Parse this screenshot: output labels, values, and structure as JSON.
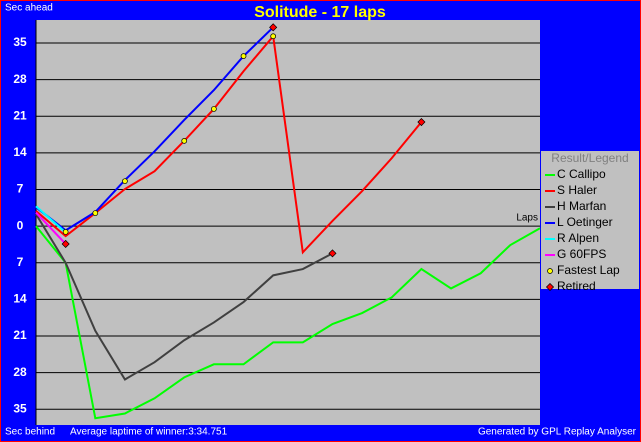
{
  "chart_data": {
    "type": "line",
    "title": "Solitude - 17 laps",
    "y_label_top": "Sec ahead",
    "y_label_bottom": "Sec behind",
    "x_label": "Laps",
    "footer_left": "Average laptime of winner:3:34.751",
    "footer_right": "Generated by GPL Replay Analyser",
    "legend_title": "Result/Legend",
    "x": [
      0,
      1,
      2,
      3,
      4,
      5,
      6,
      7,
      8,
      9,
      10,
      11,
      12,
      13,
      14,
      15,
      16,
      17
    ],
    "xlim": [
      0,
      17
    ],
    "ylim": [
      -38,
      39.4
    ],
    "yticks": [
      35,
      28,
      21,
      14,
      7,
      0,
      {
        "value": -7,
        "label": "7"
      },
      {
        "value": -14,
        "label": "14"
      },
      {
        "value": -21,
        "label": "21"
      },
      {
        "value": -28,
        "label": "28"
      },
      {
        "value": -35,
        "label": "35"
      }
    ],
    "grid": true,
    "series": [
      {
        "name": "C Callipo",
        "color": "#00ff00",
        "values": [
          0,
          -7,
          -36.7,
          -35.8,
          -32.9,
          -28.9,
          -26.4,
          -26.4,
          -22.2,
          -22.2,
          -18.7,
          -16.6,
          -13.6,
          -8.2,
          -11.9,
          -9,
          -3.6,
          -0.4
        ]
      },
      {
        "name": "S Haler",
        "color": "#ff0000",
        "values": [
          2.9,
          -1.9,
          2.5,
          7.1,
          10.5,
          16.3,
          22.4,
          29.6,
          36.3,
          -5,
          1,
          6.7,
          13,
          19.9,
          null,
          null,
          null,
          null
        ]
      },
      {
        "name": "H Marfan",
        "color": "#404040",
        "values": [
          2.3,
          -7,
          -20,
          -29.3,
          -26,
          -21.8,
          -18.4,
          -14.5,
          -9.4,
          -8.2,
          -5.2,
          null,
          null,
          null,
          null,
          null,
          null,
          null
        ]
      },
      {
        "name": "L Oetinger",
        "color": "#0000ff",
        "values": [
          3.6,
          -0.8,
          2.7,
          8.8,
          14.3,
          20.3,
          26,
          32.5,
          38,
          null,
          null,
          null,
          null,
          null,
          null,
          null,
          null,
          null
        ]
      },
      {
        "name": "R Alpen",
        "color": "#00ffff",
        "values": [
          3.8,
          -1.2,
          null,
          null,
          null,
          null,
          null,
          null,
          null,
          null,
          null,
          null,
          null,
          null,
          null,
          null,
          null,
          null
        ]
      },
      {
        "name": "G 60FPS",
        "color": "#ff00ff",
        "values": [
          2.6,
          -3.4,
          null,
          null,
          null,
          null,
          null,
          null,
          null,
          null,
          null,
          null,
          null,
          null,
          null,
          null,
          null,
          null
        ]
      }
    ],
    "markers": [
      {
        "name": "Fastest Lap",
        "color": "#ffff00",
        "x": [
          1,
          2,
          3,
          5,
          6,
          7,
          8
        ],
        "y": [
          -1.1,
          2.5,
          8.6,
          16.3,
          22.4,
          32.5,
          36.3
        ]
      },
      {
        "name": "Retired",
        "color": "#ff0000",
        "x": [
          1,
          8,
          10,
          13
        ],
        "y": [
          -3.4,
          38,
          -5.2,
          19.9
        ]
      }
    ]
  }
}
